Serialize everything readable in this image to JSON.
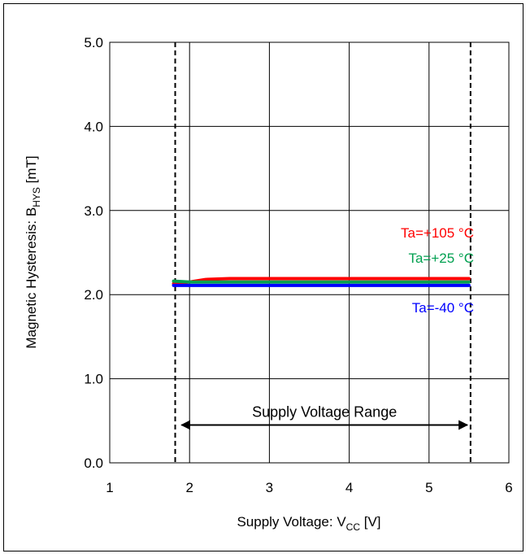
{
  "chart_data": {
    "type": "line",
    "xlabel": {
      "main": "Supply Voltage: V",
      "sub": "CC",
      "unit": " [V]"
    },
    "ylabel": {
      "main": "Magnetic Hysteresis: B",
      "sub": "HYS",
      "unit": " [mT]"
    },
    "xlim": [
      1,
      6
    ],
    "ylim": [
      0,
      5
    ],
    "x_ticks": [
      1,
      2,
      3,
      4,
      5,
      6
    ],
    "x_tick_labels": [
      "1",
      "2",
      "3",
      "4",
      "5",
      "6"
    ],
    "y_ticks": [
      0,
      1,
      2,
      3,
      4,
      5
    ],
    "y_tick_labels": [
      "0.0",
      "1.0",
      "2.0",
      "3.0",
      "4.0",
      "5.0"
    ],
    "grid": true,
    "series": [
      {
        "name": "Ta=+105 °C",
        "color": "#ff0000",
        "x": [
          1.8,
          2.0,
          2.2,
          2.5,
          3.0,
          4.0,
          5.0,
          5.5
        ],
        "y": [
          2.13,
          2.15,
          2.18,
          2.19,
          2.19,
          2.19,
          2.19,
          2.19
        ]
      },
      {
        "name": "Ta=+25 °C",
        "color": "#00a050",
        "x": [
          1.8,
          2.0,
          2.5,
          3.0,
          4.0,
          5.0,
          5.5
        ],
        "y": [
          2.16,
          2.15,
          2.15,
          2.15,
          2.15,
          2.15,
          2.15
        ]
      },
      {
        "name": "Ta=-40 °C",
        "color": "#0000ff",
        "x": [
          1.8,
          2.0,
          2.5,
          3.0,
          4.0,
          5.0,
          5.5
        ],
        "y": [
          2.11,
          2.11,
          2.11,
          2.11,
          2.11,
          2.11,
          2.11
        ]
      }
    ],
    "vlines": [
      1.82,
      5.52
    ],
    "range_annotation": {
      "label": "Supply Voltage Range",
      "from": 1.9,
      "to": 5.48,
      "y": 0.45
    }
  }
}
